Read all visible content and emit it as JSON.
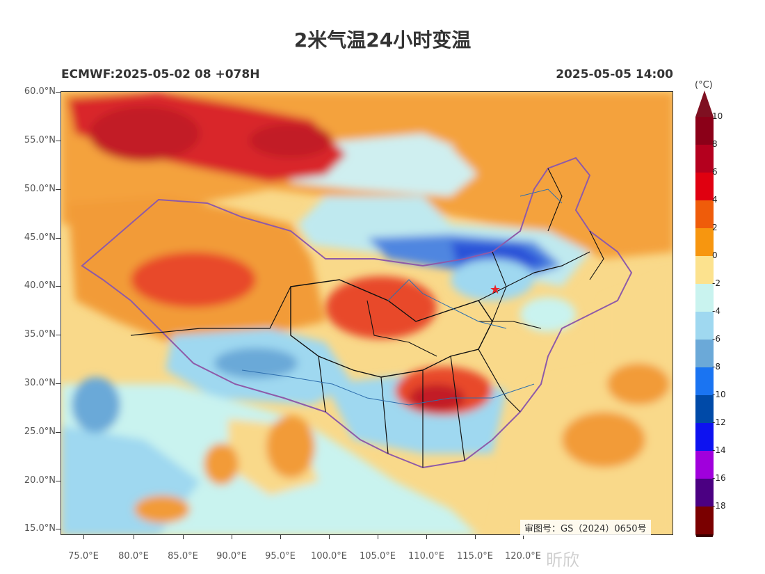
{
  "title": "2米气温24小时变温",
  "subtitle_left": "ECMWF:2025-05-02 08 +078H",
  "subtitle_right": "2025-05-05 14:00",
  "lat_labels": [
    "60.0°N",
    "55.0°N",
    "50.0°N",
    "45.0°N",
    "40.0°N",
    "35.0°N",
    "30.0°N",
    "25.0°N",
    "20.0°N",
    "15.0°N"
  ],
  "lon_labels": [
    "75.0°E",
    "80.0°E",
    "85.0°E",
    "90.0°E",
    "95.0°E",
    "100.0°E",
    "105.0°E",
    "110.0°E",
    "115.0°E",
    "120.0°E"
  ],
  "review_number": "审图号：GS（2024）0650号",
  "watermark": "昕欣",
  "colorbar": {
    "unit": "(°C)",
    "labels": [
      "10",
      "8",
      "6",
      "4",
      "2",
      "0",
      "-2",
      "-4",
      "-6",
      "-8",
      "-10",
      "-12",
      "-14",
      "-16",
      "-18"
    ],
    "colors": [
      "#8b0018",
      "#b4001e",
      "#e00010",
      "#ef5c0a",
      "#f7960f",
      "#fce28e",
      "#c9f3ef",
      "#9fd8f0",
      "#6ba9d8",
      "#1a74f2",
      "#004aa8",
      "#0d12f0",
      "#a000dc",
      "#4b0082",
      "#7a0000"
    ],
    "top_color": "#7f1021",
    "bottom_color": "#3a0000"
  },
  "marker": {
    "symbol": "★",
    "color": "#e8232a"
  }
}
